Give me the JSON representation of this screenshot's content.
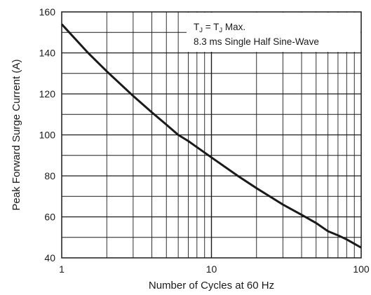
{
  "chart_data": {
    "type": "line",
    "xscale": "log",
    "xlim": [
      1,
      100
    ],
    "ylim": [
      40,
      160
    ],
    "xlabel": "Number of Cycles at 60 Hz",
    "ylabel": "Peak Forward Surge Current (A)",
    "grid": true,
    "x_ticks": [
      "1",
      "10",
      "100"
    ],
    "y_ticks": [
      "40",
      "60",
      "80",
      "100",
      "120",
      "140",
      "160"
    ],
    "annotation": {
      "line1": {
        "t1": "T",
        "s1": "J",
        "eq": " = T",
        "s2": "J",
        "rest": " Max."
      },
      "line2": "8.3 ms Single Half Sine-Wave",
      "placement": "top-right"
    },
    "series": [
      {
        "x": [
          1,
          1.5,
          2,
          3,
          4,
          5,
          6,
          7,
          8,
          10,
          15,
          20,
          30,
          40,
          50,
          60,
          70,
          80,
          100
        ],
        "y": [
          154,
          140,
          131,
          119,
          111,
          105,
          100,
          97,
          94,
          89,
          80,
          74,
          66,
          61,
          57,
          53,
          51,
          49,
          45
        ]
      }
    ]
  }
}
